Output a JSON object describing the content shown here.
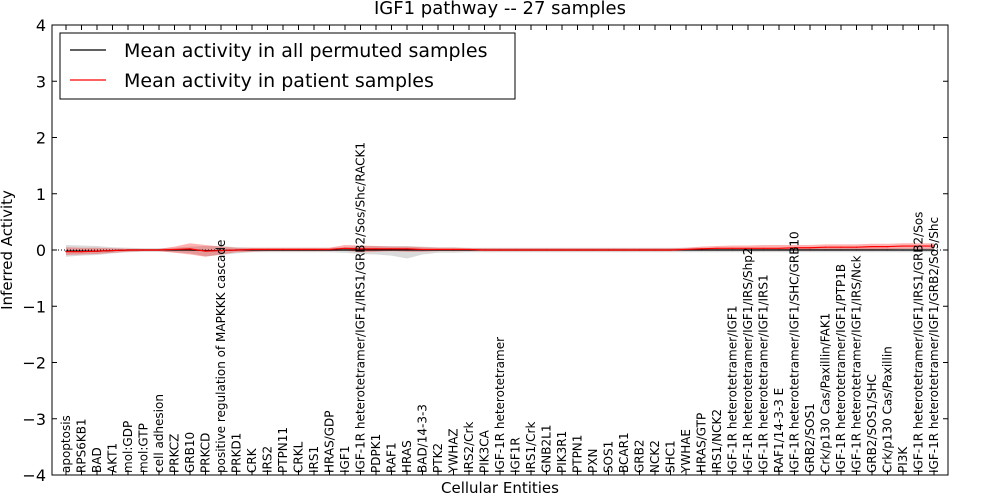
{
  "chart_data": {
    "type": "line",
    "title": "IGF1 pathway -- 27 samples",
    "xlabel": "Cellular Entities",
    "ylabel": "Inferred Activity",
    "ylim": [
      -4,
      4
    ],
    "yticks": [
      "4",
      "3",
      "2",
      "1",
      "0",
      "−1",
      "−2",
      "−3",
      "−4"
    ],
    "legend_position": "top-left",
    "categories": [
      "apoptosis",
      "RPS6KB1",
      "BAD",
      "AKT1",
      "mol:GDP",
      "mol:GTP",
      "cell adhesion",
      "PRKCZ",
      "GRB10",
      "PRKCD",
      "positive regulation of MAPKKK cascade",
      "PRKD1",
      "CRK",
      "IRS2",
      "PTPN11",
      "CRKL",
      "IRS1",
      "HRAS/GDP",
      "IGF1",
      "IGF-1R heterotetramer/IGF1/IRS1/GRB2/Sos/Shc/RACK1",
      "PDPK1",
      "RAF1",
      "HRAS",
      "BAD/14-3-3",
      "PTK2",
      "YWHAZ",
      "IRS2/Crk",
      "PIK3CA",
      "IGF-1R heterotetramer",
      "IGF1R",
      "IRS1/Crk",
      "GNB2L1",
      "PIK3R1",
      "PTPN1",
      "PXN",
      "SOS1",
      "BCAR1",
      "GRB2",
      "NCK2",
      "SHC1",
      "YWHAE",
      "HRAS/GTP",
      "IRS1/NCK2",
      "IGF-1R heterotetramer/IGF1",
      "IGF-1R heterotetramer/IGF1/IRS/Shp2",
      "IGF-1R heterotetramer/IGF1/IRS1",
      "RAF1/14-3-3 E",
      "IGF-1R heterotetramer/IGF1/SHC/GRB10",
      "GRB2/SOS1",
      "Crk/p130 Cas/Paxillin/FAK1",
      "IGF-1R heterotetramer/IGF1/PTP1B",
      "IGF-1R heterotetramer/IGF1/IRS/Nck",
      "GRB2/SOS1/SHC",
      "Crk/p130 Cas/Paxillin",
      "PI3K",
      "IGF-1R heterotetramer/IGF1/IRS1/GRB2/Sos",
      "IGF-1R heterotetramer/IGF1/GRB2/Sos/Shc"
    ],
    "series": [
      {
        "name": "Mean activity in all permuted samples",
        "color": "#000000",
        "values": [
          -0.02,
          -0.02,
          -0.02,
          -0.01,
          0.0,
          0.0,
          0.0,
          0.0,
          0.0,
          -0.01,
          -0.01,
          0.0,
          0.0,
          0.0,
          0.0,
          0.0,
          0.0,
          0.0,
          0.0,
          0.0,
          0.0,
          0.0,
          0.0,
          0.0,
          0.0,
          0.0,
          0.0,
          0.0,
          0.0,
          0.0,
          0.0,
          0.0,
          0.0,
          0.0,
          0.0,
          0.0,
          0.0,
          0.0,
          0.0,
          0.0,
          0.0,
          0.0,
          0.0,
          0.0,
          0.0,
          0.0,
          0.0,
          0.0,
          0.0,
          0.0,
          0.0,
          0.0,
          0.0,
          0.0,
          0.0,
          0.0,
          0.0
        ],
        "band_low": [
          -0.12,
          -0.1,
          -0.09,
          -0.06,
          -0.04,
          -0.03,
          -0.03,
          -0.04,
          -0.06,
          -0.11,
          -0.09,
          -0.06,
          -0.04,
          -0.04,
          -0.04,
          -0.04,
          -0.04,
          -0.04,
          -0.05,
          -0.07,
          -0.08,
          -0.1,
          -0.15,
          -0.08,
          -0.05,
          -0.05,
          -0.04,
          -0.04,
          -0.04,
          -0.04,
          -0.04,
          -0.04,
          -0.04,
          -0.04,
          -0.04,
          -0.04,
          -0.04,
          -0.04,
          -0.04,
          -0.04,
          -0.04,
          -0.04,
          -0.04,
          -0.04,
          -0.04,
          -0.04,
          -0.04,
          -0.04,
          -0.04,
          -0.04,
          -0.04,
          -0.04,
          -0.04,
          -0.04,
          -0.04,
          -0.04,
          -0.04
        ],
        "band_high": [
          0.09,
          0.08,
          0.07,
          0.05,
          0.04,
          0.03,
          0.03,
          0.04,
          0.06,
          0.07,
          0.07,
          0.05,
          0.04,
          0.04,
          0.04,
          0.04,
          0.04,
          0.04,
          0.05,
          0.07,
          0.07,
          0.07,
          0.07,
          0.06,
          0.05,
          0.05,
          0.04,
          0.04,
          0.04,
          0.04,
          0.04,
          0.04,
          0.04,
          0.04,
          0.04,
          0.04,
          0.04,
          0.04,
          0.04,
          0.04,
          0.04,
          0.04,
          0.04,
          0.04,
          0.04,
          0.04,
          0.04,
          0.04,
          0.04,
          0.04,
          0.04,
          0.04,
          0.04,
          0.04,
          0.04,
          0.04,
          0.04
        ]
      },
      {
        "name": "Mean activity in patient samples",
        "color": "#ff0000",
        "values": [
          -0.03,
          -0.03,
          -0.02,
          -0.01,
          0.0,
          0.0,
          0.0,
          0.01,
          0.02,
          -0.02,
          -0.01,
          0.0,
          0.01,
          0.01,
          0.01,
          0.01,
          0.01,
          0.01,
          0.03,
          0.02,
          0.02,
          0.02,
          0.02,
          0.01,
          0.01,
          0.01,
          0.01,
          0.0,
          0.0,
          0.0,
          0.0,
          0.0,
          0.0,
          0.0,
          0.0,
          0.0,
          0.0,
          0.0,
          0.0,
          0.0,
          0.01,
          0.02,
          0.03,
          0.03,
          0.03,
          0.03,
          0.03,
          0.04,
          0.04,
          0.05,
          0.05,
          0.05,
          0.06,
          0.06,
          0.07,
          0.07,
          0.07
        ],
        "band_low": [
          -0.09,
          -0.08,
          -0.07,
          -0.05,
          -0.03,
          -0.02,
          -0.02,
          -0.05,
          -0.08,
          -0.12,
          -0.08,
          -0.04,
          -0.03,
          -0.02,
          -0.02,
          -0.02,
          -0.02,
          -0.02,
          -0.01,
          -0.04,
          -0.03,
          -0.02,
          -0.03,
          -0.03,
          -0.02,
          -0.02,
          -0.02,
          -0.02,
          -0.02,
          -0.02,
          -0.02,
          -0.02,
          -0.02,
          -0.02,
          -0.02,
          -0.02,
          -0.02,
          -0.02,
          -0.02,
          -0.02,
          -0.01,
          -0.01,
          -0.01,
          -0.01,
          -0.01,
          -0.01,
          -0.01,
          0.0,
          0.0,
          0.0,
          0.0,
          0.0,
          0.01,
          0.01,
          0.02,
          0.02,
          0.02
        ],
        "band_high": [
          0.05,
          0.04,
          0.04,
          0.03,
          0.02,
          0.02,
          0.02,
          0.06,
          0.12,
          0.09,
          0.06,
          0.04,
          0.04,
          0.04,
          0.04,
          0.04,
          0.04,
          0.04,
          0.09,
          0.08,
          0.07,
          0.06,
          0.06,
          0.05,
          0.04,
          0.04,
          0.03,
          0.03,
          0.03,
          0.03,
          0.03,
          0.03,
          0.03,
          0.03,
          0.03,
          0.03,
          0.03,
          0.03,
          0.03,
          0.03,
          0.04,
          0.06,
          0.07,
          0.08,
          0.08,
          0.09,
          0.09,
          0.09,
          0.09,
          0.1,
          0.1,
          0.1,
          0.11,
          0.11,
          0.12,
          0.12,
          0.12
        ]
      }
    ],
    "reference_line": 0
  }
}
